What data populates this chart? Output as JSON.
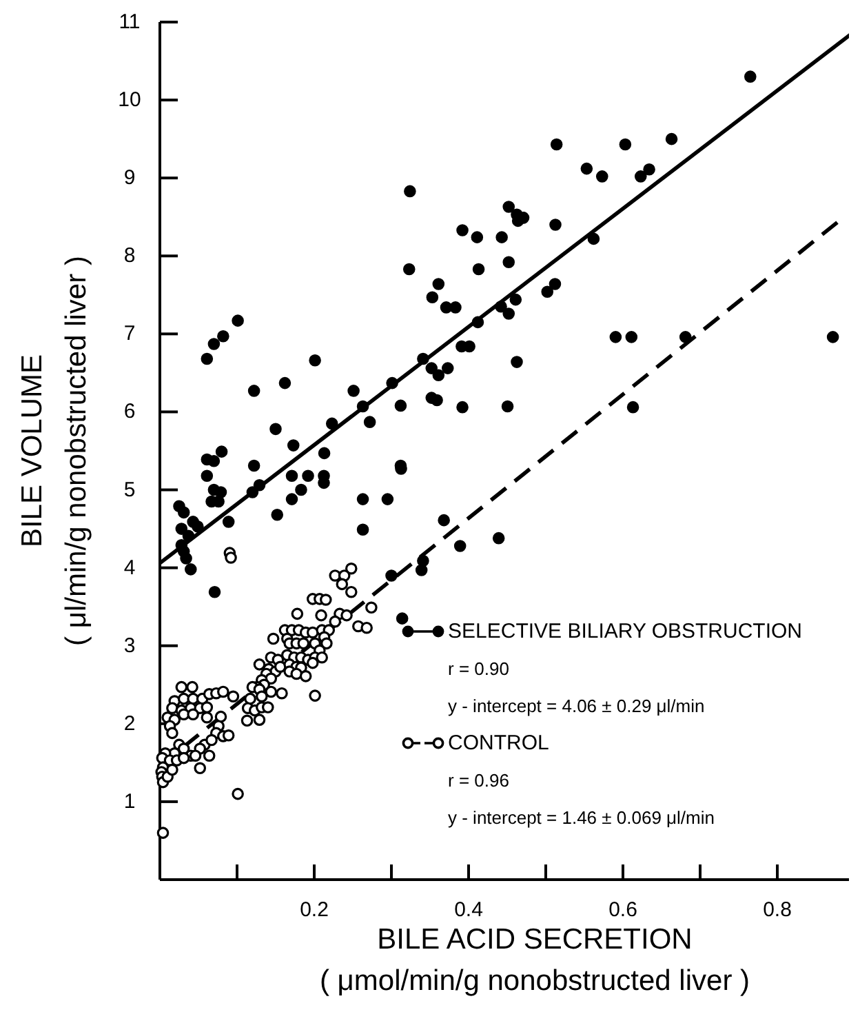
{
  "chart_data": {
    "type": "scatter",
    "xlabel": "BILE ACID SECRETION\n( μmol/min/g nonobstructed liver )",
    "ylabel": "BILE VOLUME\n( μl/min/g nonobstructed liver )",
    "xlim": [
      0,
      0.9
    ],
    "ylim": [
      0,
      11
    ],
    "xticks": [
      {
        "value": 0.1,
        "label": null
      },
      0.2,
      {
        "value": 0.3,
        "label": null
      },
      0.4,
      {
        "value": 0.5,
        "label": null
      },
      0.6,
      {
        "value": 0.7,
        "label": null
      },
      0.8,
      {
        "value": 0.9,
        "label": null
      }
    ],
    "yticks": [
      1,
      2,
      3,
      4,
      5,
      6,
      7,
      8,
      9,
      10,
      11
    ],
    "grid": false,
    "legend": "bottom right",
    "annotations": [
      "r = 0.90",
      "y - intercept = 4.06 ± 0.29 μl/min",
      "r = 0.96",
      "y - intercept = 1.46 ± 0.069 μl/min"
    ],
    "series": [
      {
        "name": "SELECTIVE BILIARY OBSTRUCTION",
        "color": "#000000",
        "marker": "circle",
        "line_style": "solid",
        "x": [
          0.061,
          0.07,
          0.082,
          0.101,
          0.324,
          0.323,
          0.392,
          0.411,
          0.413,
          0.361,
          0.353,
          0.371,
          0.383,
          0.412,
          0.391,
          0.401,
          0.201,
          0.122,
          0.162,
          0.251,
          0.301,
          0.341,
          0.352,
          0.361,
          0.373,
          0.263,
          0.312,
          0.352,
          0.359,
          0.392,
          0.15,
          0.223,
          0.272,
          0.173,
          0.213,
          0.061,
          0.07,
          0.08,
          0.122,
          0.312,
          0.765,
          0.514,
          0.603,
          0.663,
          0.553,
          0.573,
          0.623,
          0.634,
          0.452,
          0.4625,
          0.471,
          0.464,
          0.443,
          0.5125,
          0.452,
          0.562,
          0.442,
          0.452,
          0.461,
          0.502,
          0.512,
          0.4625,
          0.4505,
          0.5905,
          0.611,
          0.681,
          0.872,
          0.613,
          0.3125,
          0.295,
          0.368,
          0.389,
          0.439,
          0.341,
          0.339,
          0.3,
          0.061,
          0.171,
          0.192,
          0.2125,
          0.2125,
          0.07,
          0.079,
          0.067,
          0.076,
          0.129,
          0.12,
          0.183,
          0.171,
          0.025,
          0.031,
          0.028,
          0.043,
          0.049,
          0.037,
          0.028,
          0.031,
          0.034,
          0.04,
          0.089,
          0.152,
          0.263,
          0.263,
          0.071,
          0.314
        ],
        "values": [
          6.68,
          6.87,
          6.97,
          7.17,
          8.83,
          7.83,
          8.33,
          8.24,
          7.83,
          7.64,
          7.47,
          7.34,
          7.34,
          7.15,
          6.84,
          6.84,
          6.66,
          6.27,
          6.37,
          6.27,
          6.37,
          6.68,
          6.56,
          6.47,
          6.56,
          6.07,
          6.08,
          6.18,
          6.15,
          6.06,
          5.78,
          5.85,
          5.87,
          5.57,
          5.47,
          5.39,
          5.37,
          5.49,
          5.31,
          5.31,
          10.3,
          9.43,
          9.43,
          9.5,
          9.12,
          9.02,
          9.02,
          9.11,
          8.63,
          8.53,
          8.49,
          8.45,
          8.24,
          8.4,
          7.92,
          8.22,
          7.35,
          7.26,
          7.44,
          7.54,
          7.64,
          6.64,
          6.07,
          6.96,
          6.96,
          6.96,
          6.96,
          6.06,
          5.27,
          4.88,
          4.61,
          4.28,
          4.38,
          4.09,
          3.97,
          3.9,
          5.18,
          5.18,
          5.18,
          5.18,
          5.09,
          5.0,
          4.97,
          4.85,
          4.85,
          5.06,
          4.97,
          5.0,
          4.88,
          4.79,
          4.71,
          4.5,
          4.59,
          4.53,
          4.41,
          4.29,
          4.21,
          4.12,
          3.98,
          4.59,
          4.68,
          4.88,
          4.49,
          3.69,
          3.35
        ]
      },
      {
        "name": "CONTROL",
        "color": "#ffffff",
        "marker": "circle",
        "line_style": "dashed",
        "x": [
          0.0905,
          0.092,
          0.248,
          0.227,
          0.239,
          0.236,
          0.248,
          0.198,
          0.207,
          0.215,
          0.178,
          0.209,
          0.233,
          0.242,
          0.274,
          0.257,
          0.268,
          0.227,
          0.162,
          0.171,
          0.18,
          0.189,
          0.198,
          0.21,
          0.219,
          0.213,
          0.216,
          0.147,
          0.165,
          0.168,
          0.177,
          0.186,
          0.201,
          0.207,
          0.144,
          0.153,
          0.165,
          0.174,
          0.183,
          0.192,
          0.201,
          0.21,
          0.129,
          0.141,
          0.15,
          0.156,
          0.168,
          0.177,
          0.183,
          0.168,
          0.177,
          0.198,
          0.189,
          0.138,
          0.144,
          0.132,
          0.135,
          0.126,
          0.12,
          0.129,
          0.144,
          0.158,
          0.095,
          0.117,
          0.132,
          0.201,
          0.114,
          0.123,
          0.132,
          0.14,
          0.113,
          0.129,
          0.028,
          0.042,
          0.019,
          0.031,
          0.043,
          0.055,
          0.064,
          0.073,
          0.082,
          0.016,
          0.028,
          0.04,
          0.052,
          0.061,
          0.01,
          0.019,
          0.031,
          0.043,
          0.013,
          0.016,
          0.061,
          0.079,
          0.076,
          0.073,
          0.082,
          0.089,
          0.058,
          0.067,
          0.052,
          0.064,
          0.052,
          0.04,
          0.046,
          0.025,
          0.031,
          0.019,
          0.007,
          0.003,
          0.013,
          0.004,
          0.002,
          0.003,
          0.004,
          0.01,
          0.016,
          0.022,
          0.031,
          0.101,
          0.004
        ],
        "values": [
          4.19,
          4.13,
          3.99,
          3.9,
          3.9,
          3.79,
          3.69,
          3.6,
          3.6,
          3.59,
          3.41,
          3.39,
          3.41,
          3.39,
          3.49,
          3.25,
          3.23,
          3.31,
          3.2,
          3.2,
          3.2,
          3.17,
          3.17,
          3.2,
          3.2,
          3.11,
          3.03,
          3.09,
          3.09,
          3.03,
          3.03,
          3.03,
          3.03,
          2.94,
          2.85,
          2.82,
          2.88,
          2.85,
          2.85,
          2.82,
          2.85,
          2.85,
          2.76,
          2.7,
          2.67,
          2.73,
          2.76,
          2.73,
          2.72,
          2.67,
          2.64,
          2.78,
          2.61,
          2.64,
          2.58,
          2.56,
          2.5,
          2.47,
          2.47,
          2.44,
          2.41,
          2.39,
          2.35,
          2.32,
          2.35,
          2.36,
          2.2,
          2.17,
          2.21,
          2.21,
          2.04,
          2.05,
          2.47,
          2.47,
          2.29,
          2.32,
          2.32,
          2.32,
          2.38,
          2.39,
          2.41,
          2.2,
          2.17,
          2.2,
          2.2,
          2.21,
          2.08,
          2.05,
          2.12,
          2.12,
          1.97,
          1.88,
          2.08,
          2.09,
          1.97,
          1.88,
          1.84,
          1.85,
          1.73,
          1.79,
          1.68,
          1.59,
          1.43,
          1.59,
          1.59,
          1.73,
          1.68,
          1.62,
          1.62,
          1.56,
          1.53,
          1.44,
          1.38,
          1.32,
          1.25,
          1.32,
          1.41,
          1.53,
          1.56,
          1.1,
          0.6
        ]
      },
      {
        "type": "line",
        "color": "#000000",
        "line_style": "solid",
        "x": [
          0,
          0.9
        ],
        "values": [
          4.06,
          10.88
        ]
      },
      {
        "type": "line",
        "color": "#000000",
        "line_style": "dashed",
        "x": [
          0,
          0.884
        ],
        "values": [
          1.46,
          8.48
        ]
      }
    ]
  }
}
